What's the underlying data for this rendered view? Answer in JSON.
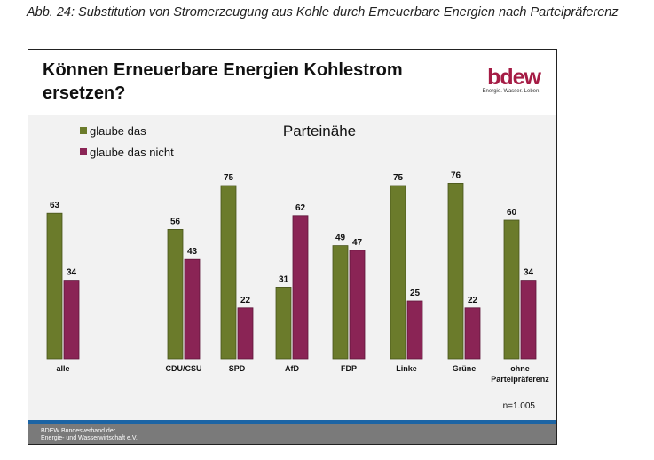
{
  "caption": "Abb. 24: Substitution von Stromerzeugung aus Kohle durch Erneuerbare Energien nach Parteipräferenz",
  "slide": {
    "title_line1": "Können Erneuerbare Energien Kohlestrom",
    "title_line2": "ersetzen?",
    "logo_word": "bdew",
    "logo_tagline": "Energie. Wasser. Leben.",
    "sample": "n=1.005",
    "footer_line1": "BDEW Bundesverband der",
    "footer_line2": "Energie- und Wasserwirtschaft e.V."
  },
  "chart_data": {
    "type": "bar",
    "title": "Parteinähe",
    "categories": [
      "alle",
      "CDU/CSU",
      "SPD",
      "AfD",
      "FDP",
      "Linke",
      "Grüne",
      "ohne Parteipräferenz"
    ],
    "series": [
      {
        "name": "glaube das",
        "values": [
          63,
          56,
          75,
          31,
          49,
          75,
          76,
          60
        ],
        "color": "#6b7b2b"
      },
      {
        "name": "glaube das nicht",
        "values": [
          34,
          43,
          22,
          62,
          47,
          25,
          22,
          34
        ],
        "color": "#8a2455"
      }
    ],
    "ylim": [
      0,
      100
    ],
    "grid": false,
    "legend": "top-left"
  }
}
